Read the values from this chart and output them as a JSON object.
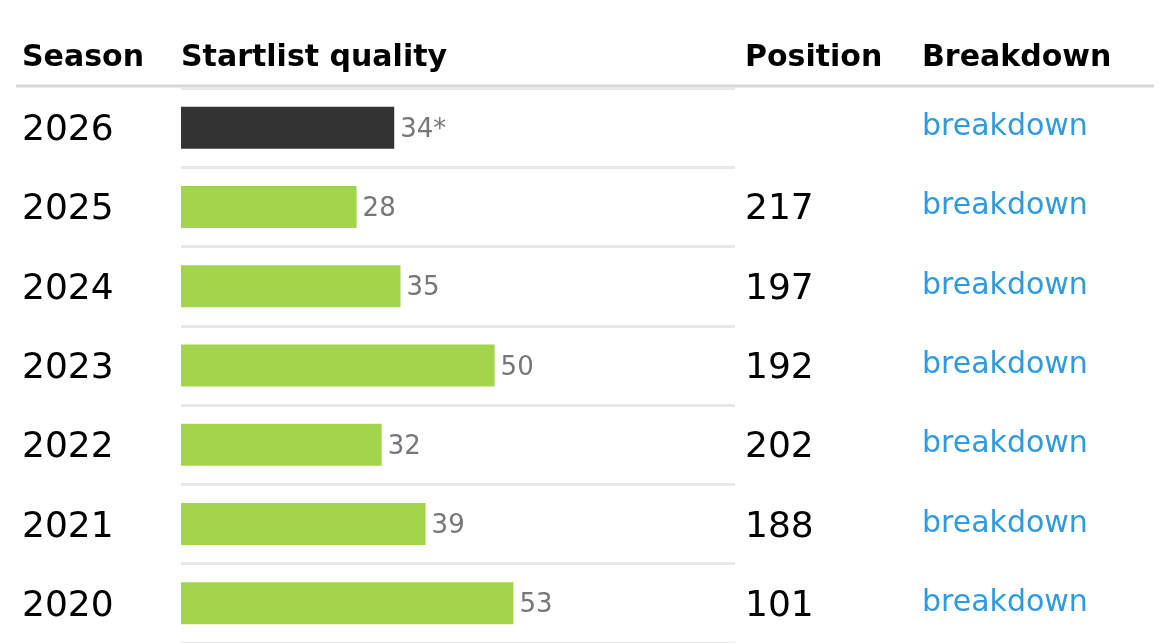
{
  "chart_data": {
    "type": "bar",
    "orientation": "horizontal",
    "ylabel": "Season",
    "xlabel": "Startlist quality",
    "categories": [
      "2026",
      "2025",
      "2024",
      "2023",
      "2022",
      "2021",
      "2020"
    ],
    "y2_categories": [
      null,
      "217",
      "197",
      "192",
      "202",
      "188",
      "101"
    ],
    "values": [
      34,
      28,
      35,
      50,
      32,
      39,
      53
    ],
    "colors": [
      "#333333",
      "#a3d54c",
      "#a3d54c",
      "#a3d54c",
      "#a3d54c",
      "#a3d54c",
      "#a3d54c"
    ],
    "value_labels": [
      "34*",
      "28",
      "35",
      "50",
      "32",
      "39",
      "53"
    ],
    "grid": "y",
    "annotations": [
      "Position",
      "Breakdown",
      "breakdown",
      "breakdown",
      "breakdown",
      "breakdown",
      "breakdown",
      "breakdown",
      "breakdown"
    ]
  }
}
